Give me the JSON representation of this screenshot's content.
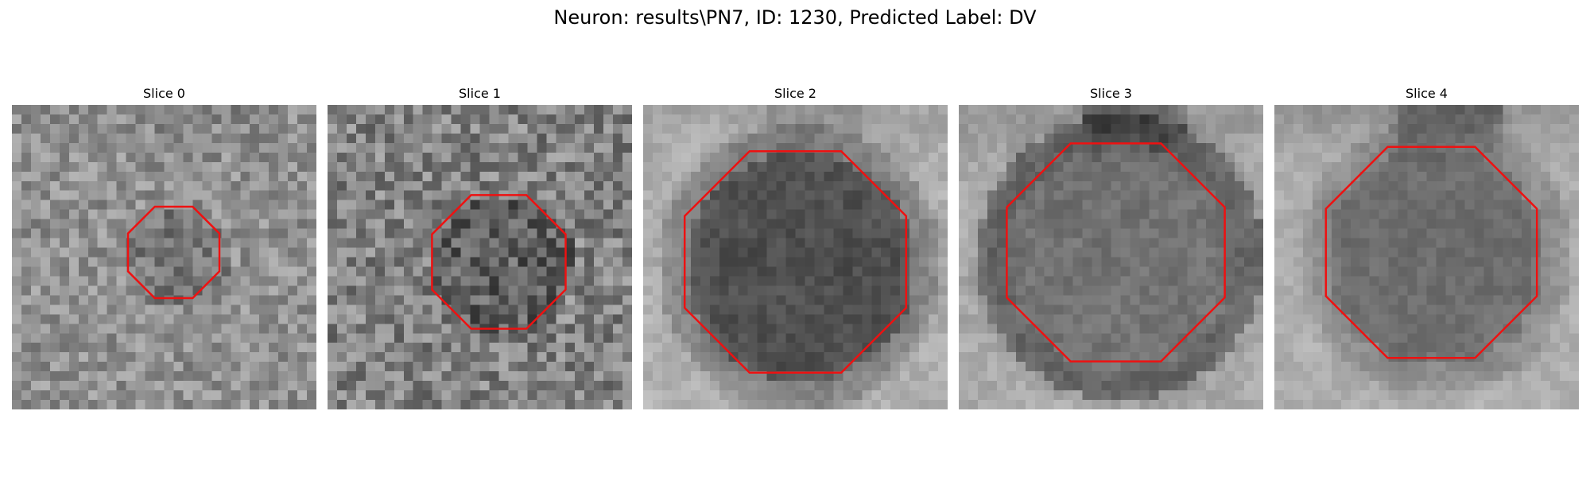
{
  "figure": {
    "title": "Neuron: results\\PN7, ID: 1230, Predicted Label: DV"
  },
  "slices": [
    {
      "title": "Slice 0"
    },
    {
      "title": "Slice 1"
    },
    {
      "title": "Slice 2"
    },
    {
      "title": "Slice 3"
    },
    {
      "title": "Slice 4"
    }
  ],
  "colors": {
    "contour": "#ee1111",
    "background": "#ffffff"
  }
}
